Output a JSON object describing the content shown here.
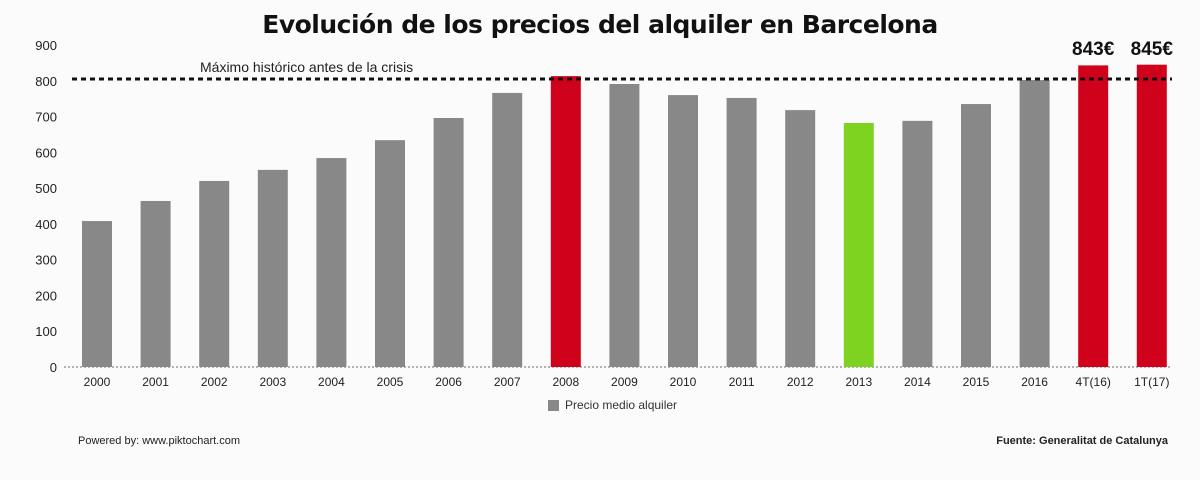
{
  "chart_data": {
    "type": "bar",
    "title": "Evolución de los precios del alquiler en Barcelona",
    "categories": [
      "2000",
      "2001",
      "2002",
      "2003",
      "2004",
      "2005",
      "2006",
      "2007",
      "2008",
      "2009",
      "2010",
      "2011",
      "2012",
      "2013",
      "2014",
      "2015",
      "2016",
      "4T(16)",
      "1T(17)"
    ],
    "values": [
      408,
      464,
      520,
      551,
      584,
      634,
      696,
      766,
      813,
      791,
      760,
      752,
      718,
      682,
      688,
      735,
      802,
      843,
      845
    ],
    "colors": [
      "#888888",
      "#888888",
      "#888888",
      "#888888",
      "#888888",
      "#888888",
      "#888888",
      "#888888",
      "#d0021b",
      "#888888",
      "#888888",
      "#888888",
      "#888888",
      "#7ed321",
      "#888888",
      "#888888",
      "#888888",
      "#d0021b",
      "#d0021b"
    ],
    "data_labels": {
      "17": "843€",
      "18": "845€"
    },
    "ylim": [
      0,
      900
    ],
    "yticks": [
      0,
      100,
      200,
      300,
      400,
      500,
      600,
      700,
      800,
      900
    ],
    "grid": false,
    "reference_line": {
      "value": 805,
      "label": "Máximo histórico antes de la crisis",
      "style": "dotted"
    },
    "legend": {
      "label": "Precio medio alquiler",
      "color": "#888888",
      "placement": "bottom"
    },
    "xlabel": "",
    "ylabel": ""
  },
  "footer": {
    "left": "Powered by: www.piktochart.com",
    "right": "Fuente: Generalitat de Catalunya"
  }
}
